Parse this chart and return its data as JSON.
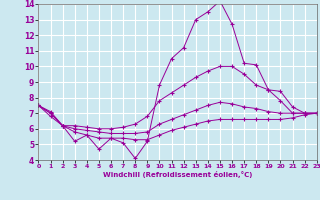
{
  "x": [
    0,
    1,
    2,
    3,
    4,
    5,
    6,
    7,
    8,
    9,
    10,
    11,
    12,
    13,
    14,
    15,
    16,
    17,
    18,
    19,
    20,
    21,
    22,
    23
  ],
  "line1": [
    7.5,
    7.1,
    6.2,
    5.2,
    5.6,
    4.7,
    5.4,
    5.1,
    4.1,
    5.2,
    8.8,
    10.5,
    11.2,
    13.0,
    13.5,
    14.2,
    12.7,
    10.2,
    10.1,
    8.5,
    7.8,
    7.0,
    7.0,
    7.0
  ],
  "line2": [
    7.5,
    7.0,
    6.2,
    6.2,
    6.1,
    6.0,
    6.0,
    6.1,
    6.3,
    6.8,
    7.8,
    8.3,
    8.8,
    9.3,
    9.7,
    10.0,
    10.0,
    9.5,
    8.8,
    8.5,
    8.4,
    7.4,
    7.0,
    7.0
  ],
  "line3": [
    7.5,
    7.0,
    6.2,
    6.0,
    5.9,
    5.8,
    5.7,
    5.7,
    5.7,
    5.8,
    6.3,
    6.6,
    6.9,
    7.2,
    7.5,
    7.7,
    7.6,
    7.4,
    7.3,
    7.1,
    7.0,
    7.0,
    7.0,
    7.0
  ],
  "line4": [
    7.5,
    6.8,
    6.2,
    5.8,
    5.6,
    5.4,
    5.4,
    5.4,
    5.3,
    5.3,
    5.6,
    5.9,
    6.1,
    6.3,
    6.5,
    6.6,
    6.6,
    6.6,
    6.6,
    6.6,
    6.6,
    6.7,
    6.9,
    7.0
  ],
  "line_color": "#990099",
  "bg_color": "#cce8f0",
  "grid_color": "#ffffff",
  "xlabel": "Windchill (Refroidissement éolien,°C)",
  "ylim": [
    4,
    14
  ],
  "xlim": [
    0,
    23
  ],
  "yticks": [
    4,
    5,
    6,
    7,
    8,
    9,
    10,
    11,
    12,
    13,
    14
  ],
  "xticks": [
    0,
    1,
    2,
    3,
    4,
    5,
    6,
    7,
    8,
    9,
    10,
    11,
    12,
    13,
    14,
    15,
    16,
    17,
    18,
    19,
    20,
    21,
    22,
    23
  ]
}
